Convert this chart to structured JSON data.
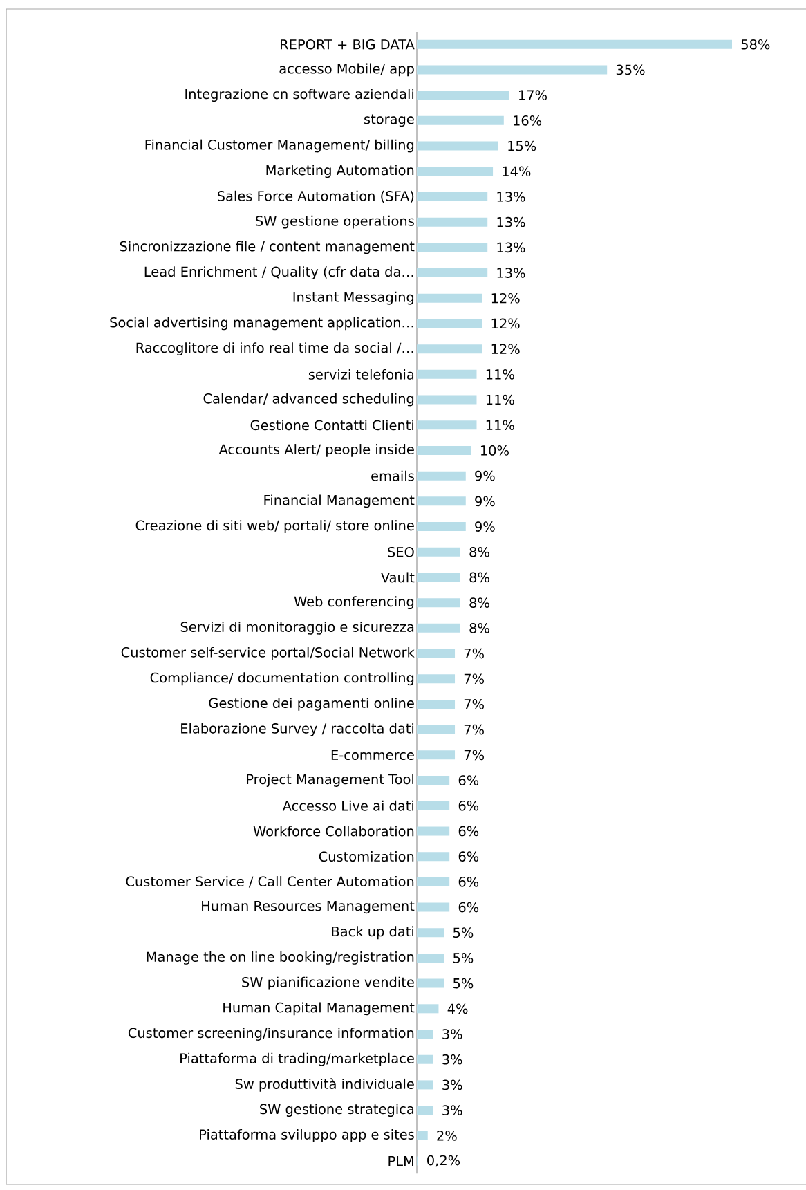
{
  "chart_data": {
    "type": "bar",
    "orientation": "horizontal",
    "categories": [
      "REPORT + BIG DATA",
      "accesso Mobile/ app",
      "Integrazione cn software aziendali",
      "storage",
      "Financial Customer Management/ billing",
      "Marketing Automation",
      "Sales Force Automation (SFA)",
      "SW gestione operations",
      "Sincronizzazione file / content management",
      "Lead Enrichment / Quality (cfr data da…",
      "Instant Messaging",
      "Social advertising management application…",
      "Raccoglitore di info real time da social /…",
      "servizi telefonia",
      "Calendar/ advanced scheduling",
      "Gestione Contatti Clienti",
      "Accounts Alert/ people inside",
      "emails",
      "Financial Management",
      "Creazione di siti web/ portali/ store online",
      "SEO",
      "Vault",
      "Web conferencing",
      "Servizi di monitoraggio e sicurezza",
      "Customer self-service portal/Social Network",
      "Compliance/ documentation controlling",
      "Gestione dei pagamenti online",
      "Elaborazione Survey / raccolta dati",
      "E-commerce",
      "Project Management Tool",
      "Accesso Live ai dati",
      "Workforce Collaboration",
      "Customization",
      "Customer Service / Call Center Automation",
      "Human Resources Management",
      "Back up dati",
      "Manage the on line booking/registration",
      "SW pianificazione vendite",
      "Human Capital Management",
      "Customer screening/insurance information",
      "Piattaforma di trading/marketplace",
      "Sw produttività individuale",
      "SW gestione strategica",
      "Piattaforma sviluppo app e sites",
      "PLM"
    ],
    "values": [
      58,
      35,
      17,
      16,
      15,
      14,
      13,
      13,
      13,
      13,
      12,
      12,
      12,
      11,
      11,
      11,
      10,
      9,
      9,
      9,
      8,
      8,
      8,
      8,
      7,
      7,
      7,
      7,
      7,
      6,
      6,
      6,
      6,
      6,
      6,
      5,
      5,
      5,
      4,
      3,
      3,
      3,
      3,
      2,
      0.2
    ],
    "value_labels": [
      "58%",
      "35%",
      "17%",
      "16%",
      "15%",
      "14%",
      "13%",
      "13%",
      "13%",
      "13%",
      "12%",
      "12%",
      "12%",
      "11%",
      "11%",
      "11%",
      "10%",
      "9%",
      "9%",
      "9%",
      "8%",
      "8%",
      "8%",
      "8%",
      "7%",
      "7%",
      "7%",
      "7%",
      "7%",
      "6%",
      "6%",
      "6%",
      "6%",
      "6%",
      "6%",
      "5%",
      "5%",
      "5%",
      "4%",
      "3%",
      "3%",
      "3%",
      "3%",
      "2%",
      "0,2%"
    ],
    "color": "#b7dde8",
    "tick_labels": "y"
  }
}
